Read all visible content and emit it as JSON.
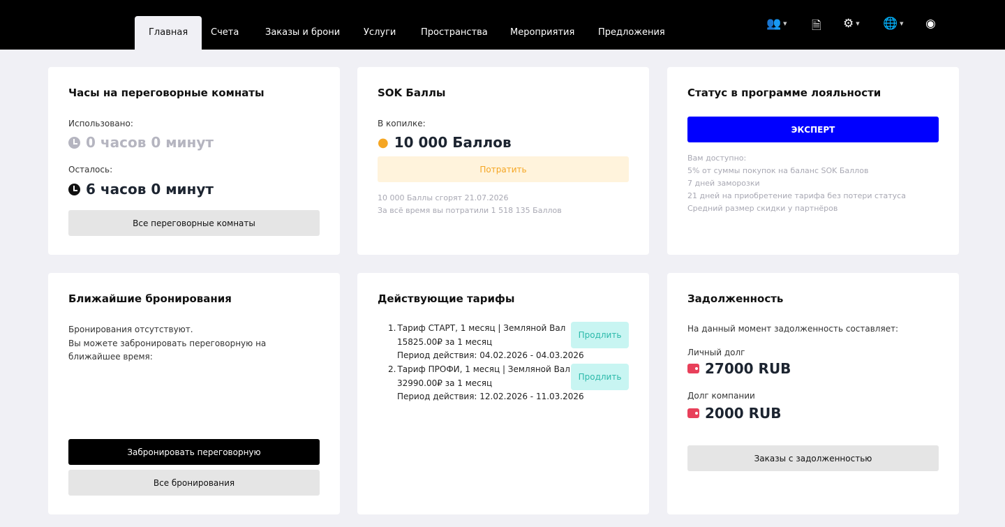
{
  "nav": {
    "tabs": [
      "Главная",
      "Счета",
      "Заказы и брони",
      "Услуги",
      "Пространства",
      "Мероприятия",
      "Предложения"
    ],
    "icons": [
      "users-icon",
      "invoice-icon",
      "settings-icon",
      "globe-icon",
      "user-icon"
    ]
  },
  "rooms": {
    "title": "Часы на переговорные комнаты",
    "used_label": "Использовано:",
    "used": "0 часов 0 минут",
    "left_label": "Осталось:",
    "left": "6 часов 0 минут",
    "button": "Все переговорные комнаты"
  },
  "points": {
    "title": "SOK Баллы",
    "label": "В копилке:",
    "value": "10 000 Баллов",
    "button": "Потратить",
    "expire": "10 000 Баллы сгорят 21.07.2026",
    "spent": "За всё время вы потратили 1 518 135 Баллов"
  },
  "loyalty": {
    "title": "Статус в программе лояльности",
    "status": "ЭКСПЕРТ",
    "status_color": "#0000ff",
    "lines": [
      "Вам доступно:",
      "5% от суммы покупок на баланс SOK Баллов",
      "7 дней заморозки",
      "21 дней на приобретение тарифа без потери статуса",
      "Средний размер скидки у партнёров"
    ]
  },
  "bookings": {
    "title": "Ближайшие бронирования",
    "text1": "Бронирования отсутствуют.",
    "text2": "Вы можете забронировать переговорную на ближайшее время:",
    "book_button": "Забронировать переговорную",
    "all_button": "Все бронирования"
  },
  "tariffs": {
    "title": "Действующие тарифы",
    "items": [
      {
        "num": "1.",
        "name": "Тариф СТАРТ, 1 месяц | Земляной Вал",
        "price": "15825.00₽ за 1 месяц",
        "period": "Период действия: 04.02.2026 - 04.03.2026",
        "button": "Продлить"
      },
      {
        "num": "2.",
        "name": "Тариф ПРОФИ, 1 месяц | Земляной Вал",
        "price": "32990.00₽ за 1 месяц",
        "period": "Период действия: 12.02.2026 - 11.03.2026",
        "button": "Продлить"
      }
    ]
  },
  "debt": {
    "title": "Задолженность",
    "text": "На данный момент задолженность составляет:",
    "personal_label": "Личный долг",
    "personal": "27000 RUB",
    "company_label": "Долг компании",
    "company": "2000 RUB",
    "button": "Заказы с задолженностью"
  }
}
